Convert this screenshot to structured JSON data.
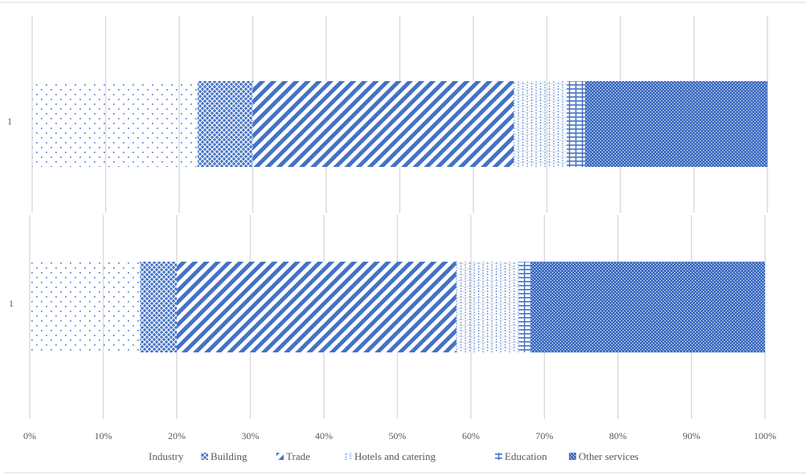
{
  "chart_data": [
    {
      "type": "bar",
      "orientation": "horizontal",
      "stacking": "percent",
      "categories": [
        "1"
      ],
      "xlim": [
        0,
        100
      ],
      "xticks": [
        "0%",
        "10%",
        "20%",
        "30%",
        "40%",
        "50%",
        "60%",
        "70%",
        "80%",
        "90%",
        "100%"
      ],
      "grid": true,
      "series": [
        {
          "name": "Industry",
          "values": [
            22.5
          ]
        },
        {
          "name": "Building",
          "values": [
            7.5
          ]
        },
        {
          "name": "Trade",
          "values": [
            35.5
          ]
        },
        {
          "name": "Hotels and catering",
          "values": [
            7.2
          ]
        },
        {
          "name": "Education",
          "values": [
            2.5
          ]
        },
        {
          "name": "Other services",
          "values": [
            24.8
          ]
        }
      ]
    },
    {
      "type": "bar",
      "orientation": "horizontal",
      "stacking": "percent",
      "categories": [
        "1"
      ],
      "xlim": [
        0,
        100
      ],
      "xticks": [
        "0%",
        "10%",
        "20%",
        "30%",
        "40%",
        "50%",
        "60%",
        "70%",
        "80%",
        "90%",
        "100%"
      ],
      "grid": true,
      "legend_position": "bottom",
      "series": [
        {
          "name": "Industry",
          "values": [
            15
          ]
        },
        {
          "name": "Building",
          "values": [
            5
          ]
        },
        {
          "name": "Trade",
          "values": [
            38
          ]
        },
        {
          "name": "Hotels and catering",
          "values": [
            8.5
          ]
        },
        {
          "name": "Education",
          "values": [
            1.6
          ]
        },
        {
          "name": "Other services",
          "values": [
            31.9
          ]
        }
      ]
    }
  ],
  "colors": {
    "series": "#4472c4",
    "grid": "#d9d9d9",
    "text": "#595959"
  }
}
